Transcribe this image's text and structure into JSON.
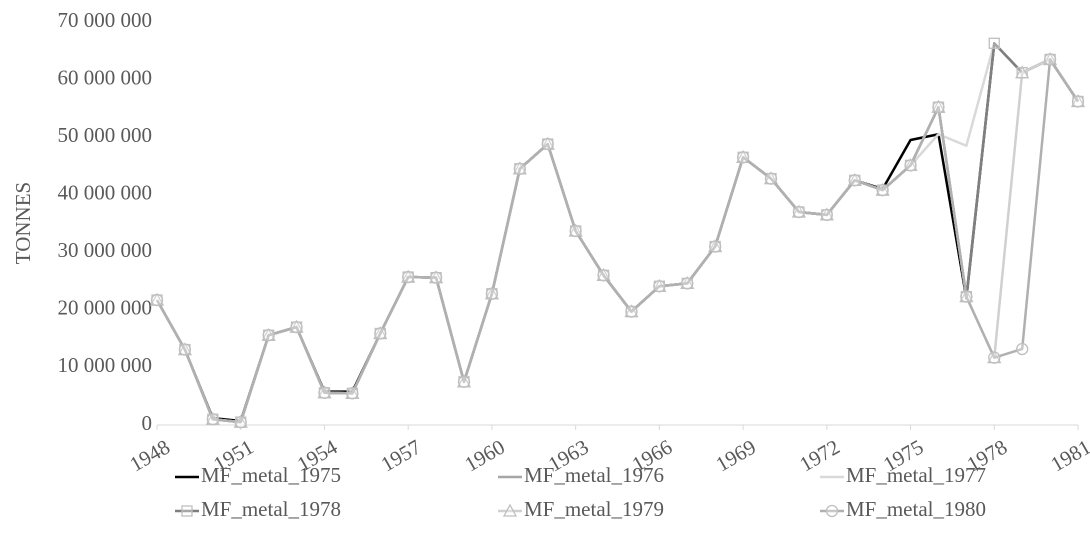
{
  "chart_data": {
    "type": "line",
    "ylabel": "TONNES",
    "x": [
      1948,
      1949,
      1950,
      1951,
      1952,
      1953,
      1954,
      1955,
      1956,
      1957,
      1958,
      1959,
      1960,
      1961,
      1962,
      1963,
      1964,
      1965,
      1966,
      1967,
      1968,
      1969,
      1970,
      1971,
      1972,
      1973,
      1974,
      1975,
      1976,
      1977,
      1978,
      1979,
      1980,
      1981
    ],
    "xlim": [
      1948,
      1981
    ],
    "xticks": [
      1948,
      1951,
      1954,
      1957,
      1960,
      1963,
      1966,
      1969,
      1972,
      1975,
      1978,
      1981
    ],
    "ylim": [
      0,
      70000000
    ],
    "yticks": [
      {
        "value": 0,
        "label": "0"
      },
      {
        "value": 10000000,
        "label": "10 000 000"
      },
      {
        "value": 20000000,
        "label": "20 000 000"
      },
      {
        "value": 30000000,
        "label": "30 000 000"
      },
      {
        "value": 40000000,
        "label": "40 000 000"
      },
      {
        "value": 50000000,
        "label": "50 000 000"
      },
      {
        "value": 60000000,
        "label": "60 000 000"
      },
      {
        "value": 70000000,
        "label": "70 000 000"
      }
    ],
    "grid": false,
    "legend": "bottom",
    "series": [
      {
        "name": "MF_metal_1975",
        "color": "#000000",
        "marker": "none",
        "values": [
          21700000,
          13100000,
          1200000,
          700000,
          15600000,
          17000000,
          5800000,
          5800000,
          15900000,
          25700000,
          25600000,
          7500000,
          22800000,
          44500000,
          48800000,
          33700000,
          26000000,
          19700000,
          24100000,
          24600000,
          31000000,
          46500000,
          42800000,
          37000000,
          36500000,
          42500000,
          41000000,
          49500000,
          50500000,
          22000000,
          66300000,
          61200000,
          63500000,
          56200000
        ]
      },
      {
        "name": "MF_metal_1976",
        "color": "#a6a6a6",
        "marker": "none",
        "values": [
          21700000,
          13100000,
          1000000,
          500000,
          15600000,
          17000000,
          5600000,
          5500000,
          15900000,
          25700000,
          25600000,
          7500000,
          22800000,
          44500000,
          48800000,
          33700000,
          26000000,
          19700000,
          24100000,
          24600000,
          31000000,
          46500000,
          42800000,
          37000000,
          36500000,
          42500000,
          40800000,
          45100000,
          55200000,
          22300000,
          66300000,
          61200000,
          63500000,
          56200000
        ]
      },
      {
        "name": "MF_metal_1977",
        "color": "#d9d9d9",
        "marker": "none",
        "values": [
          21700000,
          13100000,
          1000000,
          500000,
          15600000,
          17000000,
          5600000,
          5500000,
          15900000,
          25700000,
          25600000,
          7500000,
          22800000,
          44500000,
          48800000,
          33700000,
          26000000,
          19700000,
          24100000,
          24600000,
          31000000,
          46500000,
          42800000,
          37000000,
          36500000,
          42500000,
          40800000,
          45100000,
          50500000,
          48500000,
          66300000,
          61200000,
          63500000,
          56200000
        ]
      },
      {
        "name": "MF_metal_1978",
        "color": "#7f7f7f",
        "marker": "square",
        "values": [
          21700000,
          13100000,
          1000000,
          500000,
          15600000,
          17000000,
          5600000,
          5500000,
          15900000,
          25700000,
          25600000,
          7500000,
          22800000,
          44500000,
          48800000,
          33700000,
          26000000,
          19700000,
          24100000,
          24600000,
          31000000,
          46500000,
          42800000,
          37000000,
          36500000,
          42500000,
          40800000,
          45100000,
          55200000,
          22300000,
          66300000,
          61200000,
          63500000,
          56200000
        ]
      },
      {
        "name": "MF_metal_1979",
        "color": "#d0d0d0",
        "marker": "triangle",
        "values": [
          21700000,
          13100000,
          1000000,
          500000,
          15600000,
          17000000,
          5600000,
          5500000,
          15900000,
          25700000,
          25600000,
          7500000,
          22800000,
          44500000,
          48800000,
          33700000,
          26000000,
          19700000,
          24100000,
          24600000,
          31000000,
          46500000,
          42800000,
          37000000,
          36500000,
          42500000,
          40800000,
          45100000,
          55200000,
          22300000,
          11700000,
          61200000,
          63500000,
          56200000
        ]
      },
      {
        "name": "MF_metal_1980",
        "color": "#b0b0b0",
        "marker": "circle",
        "values": [
          21700000,
          13100000,
          1000000,
          500000,
          15600000,
          17000000,
          5600000,
          5500000,
          15900000,
          25700000,
          25600000,
          7500000,
          22800000,
          44500000,
          48800000,
          33700000,
          26000000,
          19700000,
          24100000,
          24600000,
          31000000,
          46500000,
          42800000,
          37000000,
          36500000,
          42500000,
          40800000,
          45100000,
          55200000,
          22300000,
          11700000,
          13200000,
          63500000,
          56200000
        ]
      }
    ]
  }
}
